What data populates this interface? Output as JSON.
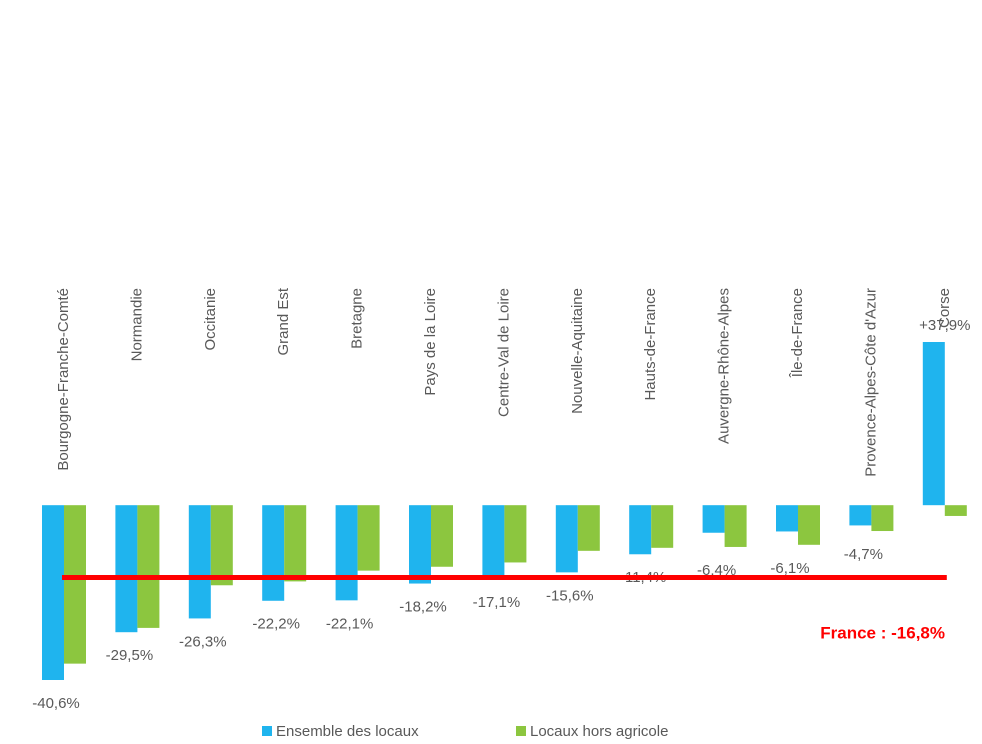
{
  "chart_data": {
    "type": "bar",
    "categories": [
      "Bourgogne-Franche-Comté",
      "Normandie",
      "Occitanie",
      "Grand Est",
      "Bretagne",
      "Pays de la Loire",
      "Centre-Val de Loire",
      "Nouvelle-Aquitaine",
      "Hauts-de-France",
      "Auvergne-Rhône-Alpes",
      "Île-de-France",
      "Provence-Alpes-Côte d'Azur",
      "Corse"
    ],
    "series": [
      {
        "name": "Ensemble des locaux",
        "color": "#1fb4ee",
        "values": [
          -40.6,
          -29.5,
          -26.3,
          -22.2,
          -22.1,
          -18.2,
          -17.1,
          -15.6,
          -11.4,
          -6.4,
          -6.1,
          -4.7,
          37.9
        ],
        "value_labels": [
          "-40,6%",
          "-29,5%",
          "-26,3%",
          "-22,2%",
          "-22,1%",
          "-18,2%",
          "-17,1%",
          "-15,6%",
          "-11,4%",
          "-6,4%",
          "-6,1%",
          "-4,7%",
          "+37,9%"
        ]
      },
      {
        "name": "Locaux hors agricole",
        "color": "#8cc63f",
        "values": [
          -36.8,
          -28.5,
          -18.6,
          -17.7,
          -15.2,
          -14.3,
          -13.3,
          -10.6,
          -9.9,
          -9.7,
          -9.2,
          -6.0,
          -2.5
        ]
      }
    ],
    "reference": {
      "value": -16.8,
      "label": "France : -16,8%",
      "color": "#ff0000"
    },
    "legend": "bottom"
  }
}
